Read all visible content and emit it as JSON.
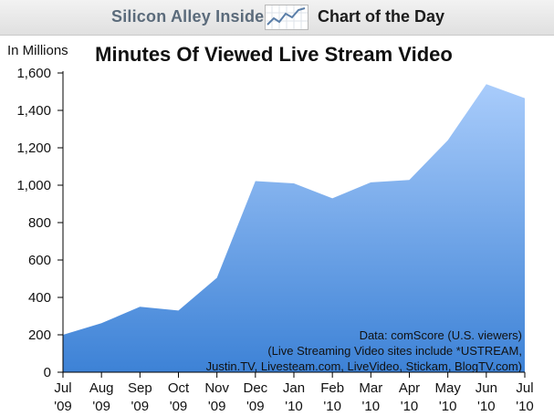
{
  "header": {
    "brand": "Silicon Alley Insider",
    "badge": "Chart of the Day"
  },
  "colors": {
    "area_top": "#a9ccfb",
    "area_bottom": "#3d82d6",
    "brand_text": "#5b6b7b"
  },
  "chart_data": {
    "type": "area",
    "title": "Minutes Of Viewed Live Stream Video",
    "ylabel": "In Millions",
    "xlabel": "",
    "categories": [
      [
        "Jul",
        "'09"
      ],
      [
        "Aug",
        "'09"
      ],
      [
        "Sep",
        "'09"
      ],
      [
        "Oct",
        "'09"
      ],
      [
        "Nov",
        "'09"
      ],
      [
        "Dec",
        "'09"
      ],
      [
        "Jan",
        "'10"
      ],
      [
        "Feb",
        "'10"
      ],
      [
        "Mar",
        "'10"
      ],
      [
        "Apr",
        "'10"
      ],
      [
        "May",
        "'10"
      ],
      [
        "Jun",
        "'10"
      ],
      [
        "Jul",
        "'10"
      ]
    ],
    "values": [
      200,
      262,
      350,
      330,
      505,
      1022,
      1010,
      930,
      1015,
      1028,
      1240,
      1540,
      1465
    ],
    "ylim": [
      0,
      1600
    ],
    "yticks": [
      0,
      200,
      400,
      600,
      800,
      1000,
      1200,
      1400,
      1600
    ],
    "ytick_labels": [
      "0",
      "200",
      "400",
      "600",
      "800",
      "1,000",
      "1,200",
      "1,400",
      "1,600"
    ],
    "grid": false,
    "legend": "none",
    "annotation": [
      "Data: comScore (U.S. viewers)",
      "(Live Streaming Video sites include *USTREAM,",
      "Justin.TV, Livesteam.com, LiveVideo, Stickam, BlogTV.com)"
    ]
  }
}
